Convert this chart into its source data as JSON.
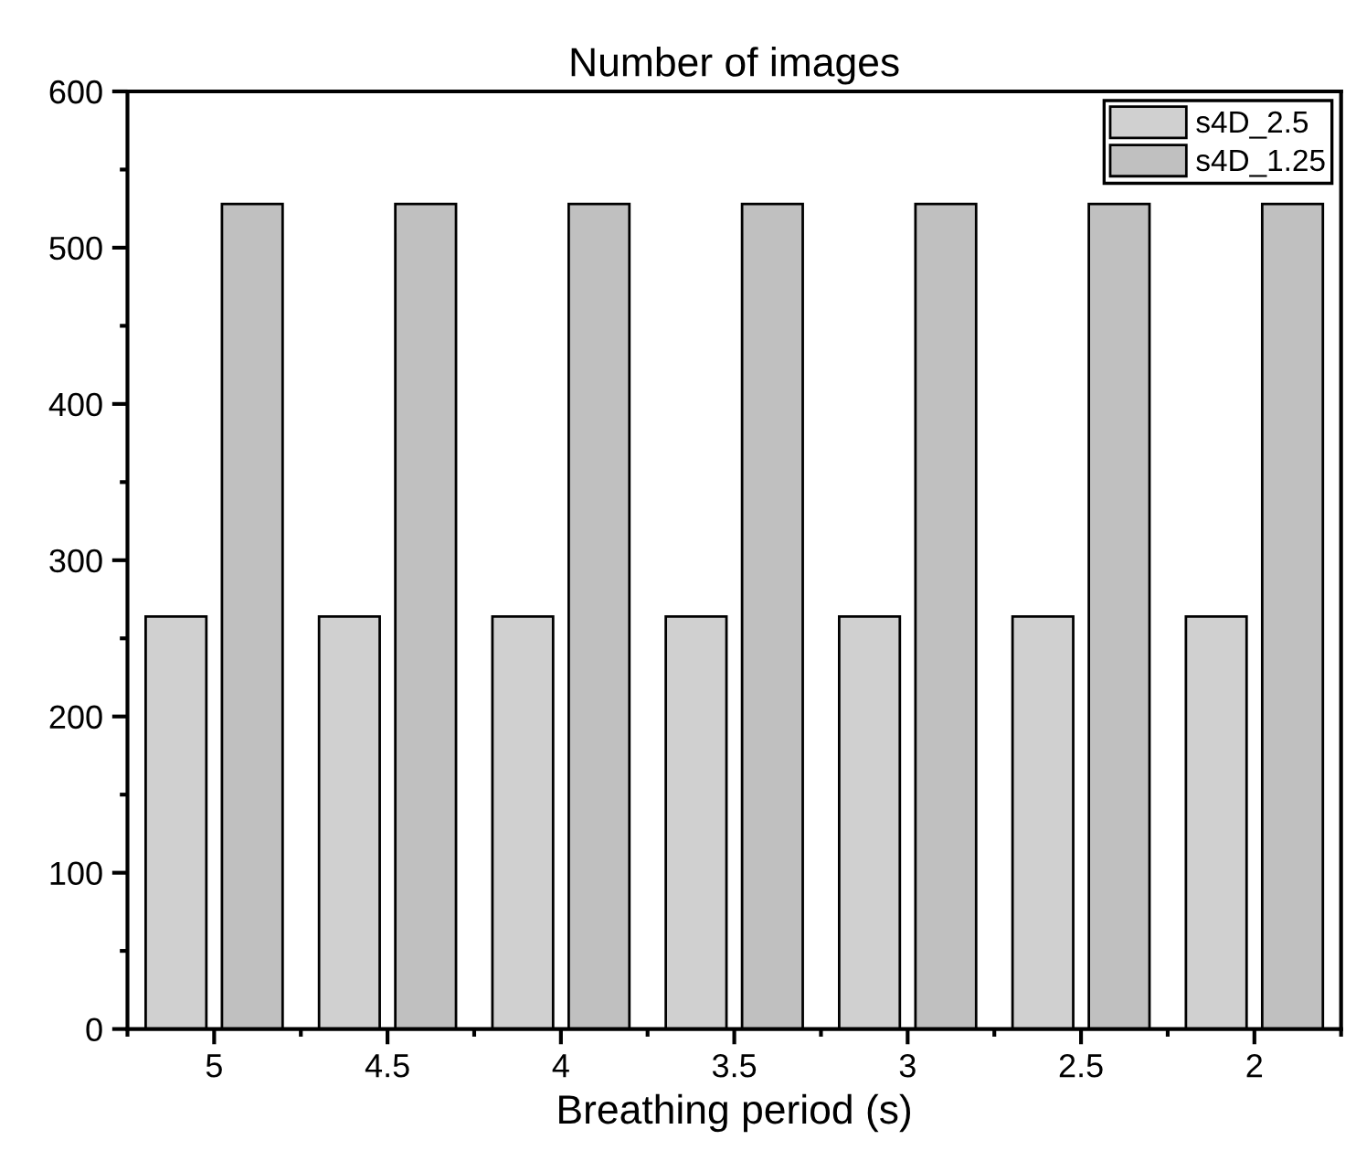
{
  "chart_data": {
    "type": "bar",
    "title": "Number of images",
    "xlabel": "Breathing period (s)",
    "categories": [
      "5",
      "4.5",
      "4",
      "3.5",
      "3",
      "2.5",
      "2"
    ],
    "series": [
      {
        "name": "s4D_2.5",
        "color": "#d0d0d0",
        "values": [
          264,
          264,
          264,
          264,
          264,
          264,
          264
        ]
      },
      {
        "name": "s4D_1.25",
        "color": "#c0c0c0",
        "values": [
          528,
          528,
          528,
          528,
          528,
          528,
          528
        ]
      }
    ],
    "ylim": [
      0,
      600
    ],
    "yticks": [
      0,
      100,
      200,
      300,
      400,
      500,
      600
    ],
    "grid": false,
    "legend": "top right"
  }
}
